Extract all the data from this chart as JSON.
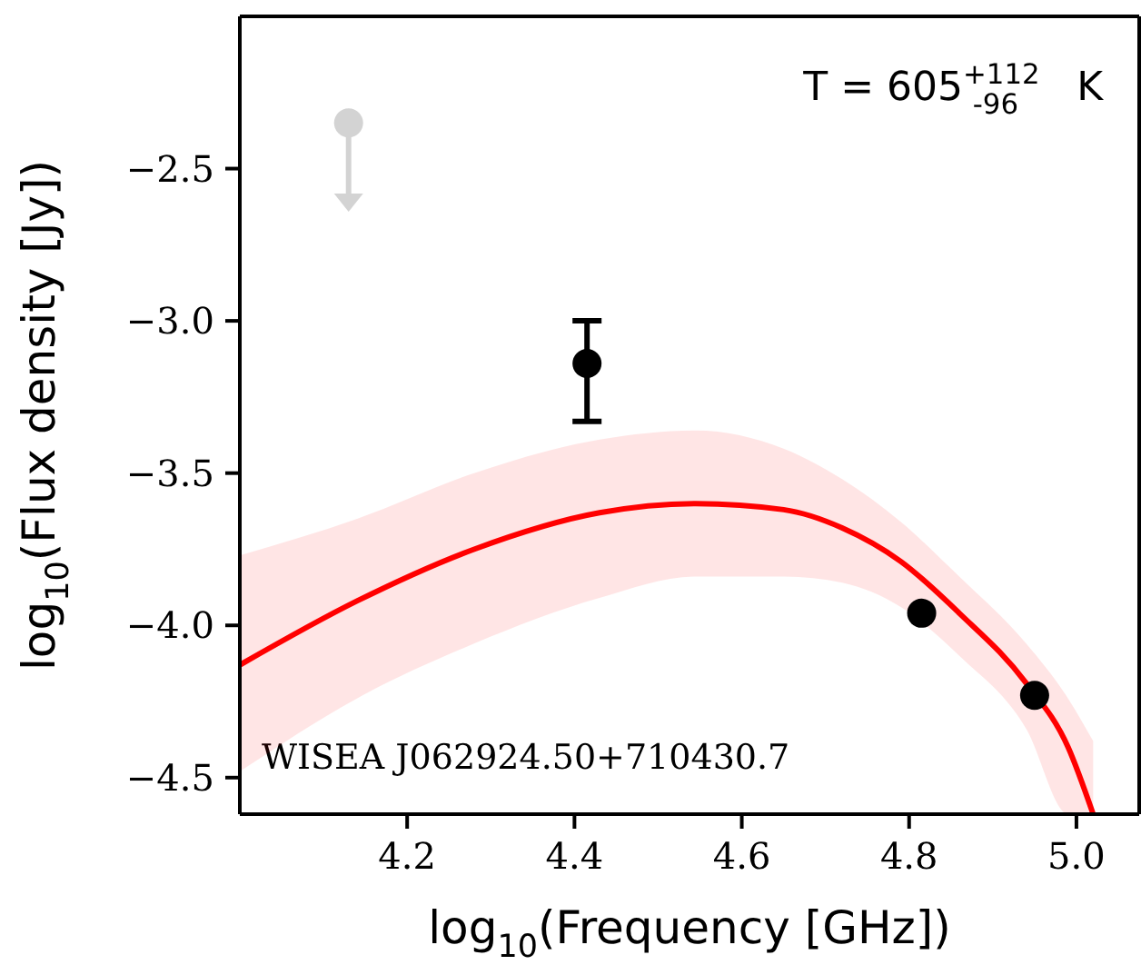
{
  "chart_data": {
    "type": "line",
    "xlabel": "log$_{10}$(Frequency [GHz])",
    "ylabel": "log$_{10}$(Flux density [Jy])",
    "annotations": [
      "T = 605$^{+112}$$_{-96}$ K",
      "WISEA J062924.50+710430.7"
    ],
    "xlim": [
      4.0,
      5.075
    ],
    "xticks": [
      {
        "value": 4.2,
        "label": "4.2"
      },
      {
        "value": 4.4,
        "label": "4.4"
      },
      {
        "value": 4.6,
        "label": "4.6"
      },
      {
        "value": 4.8,
        "label": "4.8"
      },
      {
        "value": 5.0,
        "label": "5.0"
      }
    ],
    "ylim": [
      -4.62,
      -2.0
    ],
    "yticks": [
      {
        "value": -2.5,
        "label": "−2.5"
      },
      {
        "value": -3.0,
        "label": "−3.0"
      },
      {
        "value": -3.5,
        "label": "−3.5"
      },
      {
        "value": -4.0,
        "label": "−4.0"
      },
      {
        "value": -4.5,
        "label": "−4.5"
      }
    ],
    "marker": "circle",
    "series": [
      {
        "marker": "none",
        "color": "#ff0000",
        "x": [
          4.0,
          4.14,
          4.28,
          4.43,
          4.545,
          4.65,
          4.72,
          4.79,
          4.86,
          4.94,
          4.99,
          5.02
        ],
        "values": [
          -4.13,
          -3.92,
          -3.75,
          -3.63,
          -3.6,
          -3.62,
          -3.68,
          -3.79,
          -3.96,
          -4.19,
          -4.4,
          -4.62
        ],
        "lower": [
          -4.48,
          -4.24,
          -4.06,
          -3.91,
          -3.84,
          -3.84,
          -3.86,
          -3.94,
          -4.1,
          -4.34,
          -4.62,
          -4.62
        ],
        "upper": [
          -3.77,
          -3.65,
          -3.5,
          -3.39,
          -3.36,
          -3.42,
          -3.52,
          -3.66,
          -3.84,
          -4.06,
          -4.24,
          -4.38
        ]
      },
      {
        "type": "scatter",
        "color": "#000000",
        "x": [
          4.415,
          4.815,
          4.95
        ],
        "values": [
          -3.14,
          -3.96,
          -4.23
        ],
        "errors": [
          [
            -3.33,
            -3.0
          ],
          null,
          null
        ]
      },
      {
        "type": "scatter",
        "color": "#d3d3d3",
        "x": [
          4.13
        ],
        "values": [
          -2.35
        ],
        "errors": [
          [
            -2.63,
            -2.35
          ]
        ]
      }
    ]
  }
}
